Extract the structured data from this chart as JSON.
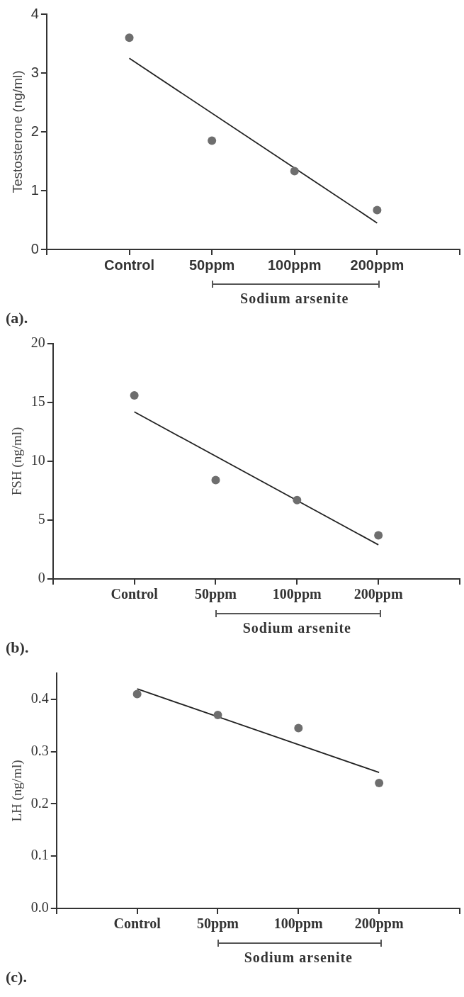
{
  "chart_data": [
    {
      "type": "scatter",
      "ylabel": "Testosterone (ng/ml)",
      "categories": [
        null,
        "Control",
        "50ppm",
        "100ppm",
        "200ppm",
        null
      ],
      "ylim": [
        0,
        4
      ],
      "yticks": [
        0,
        1,
        2,
        3,
        4
      ],
      "legend": false,
      "series": [
        {
          "marker": "circle",
          "color": "#6e6e6e",
          "values": [
            null,
            3.6,
            1.85,
            1.33,
            0.67,
            null
          ]
        },
        {
          "type": "line",
          "marker": "none",
          "color": "#222222",
          "x": [
            "Control",
            "200ppm"
          ],
          "values": [
            3.25,
            0.45
          ]
        }
      ],
      "annotations": [
        "Sodium arsenite",
        "(a)."
      ]
    },
    {
      "type": "scatter",
      "ylabel": "FSH (ng/ml)",
      "categories": [
        null,
        "Control",
        "50ppm",
        "100ppm",
        "200ppm",
        null
      ],
      "ylim": [
        0,
        20
      ],
      "yticks": [
        0,
        5,
        10,
        15,
        20
      ],
      "legend": false,
      "series": [
        {
          "marker": "circle",
          "color": "#6e6e6e",
          "values": [
            null,
            15.6,
            8.4,
            6.7,
            3.7,
            null
          ]
        },
        {
          "type": "line",
          "marker": "none",
          "color": "#222222",
          "x": [
            "Control",
            "200ppm"
          ],
          "values": [
            14.2,
            2.9
          ]
        }
      ],
      "annotations": [
        "Sodium arsenite",
        "(b)."
      ]
    },
    {
      "type": "scatter",
      "ylabel": "LH (ng/ml)",
      "categories": [
        null,
        "Control",
        "50ppm",
        "100ppm",
        "200ppm",
        null
      ],
      "ylim": [
        0,
        0.45
      ],
      "yticks": [
        {
          "value": 0,
          "label": "0.0"
        },
        0.1,
        0.2,
        0.3,
        0.4
      ],
      "legend": false,
      "series": [
        {
          "marker": "circle",
          "color": "#6e6e6e",
          "values": [
            null,
            0.41,
            0.37,
            0.345,
            0.24,
            null
          ]
        },
        {
          "type": "line",
          "marker": "none",
          "color": "#222222",
          "x": [
            "Control",
            "200ppm"
          ],
          "values": [
            0.42,
            0.26
          ]
        }
      ],
      "annotations": [
        "Sodium arsenite",
        "(c)."
      ]
    }
  ]
}
